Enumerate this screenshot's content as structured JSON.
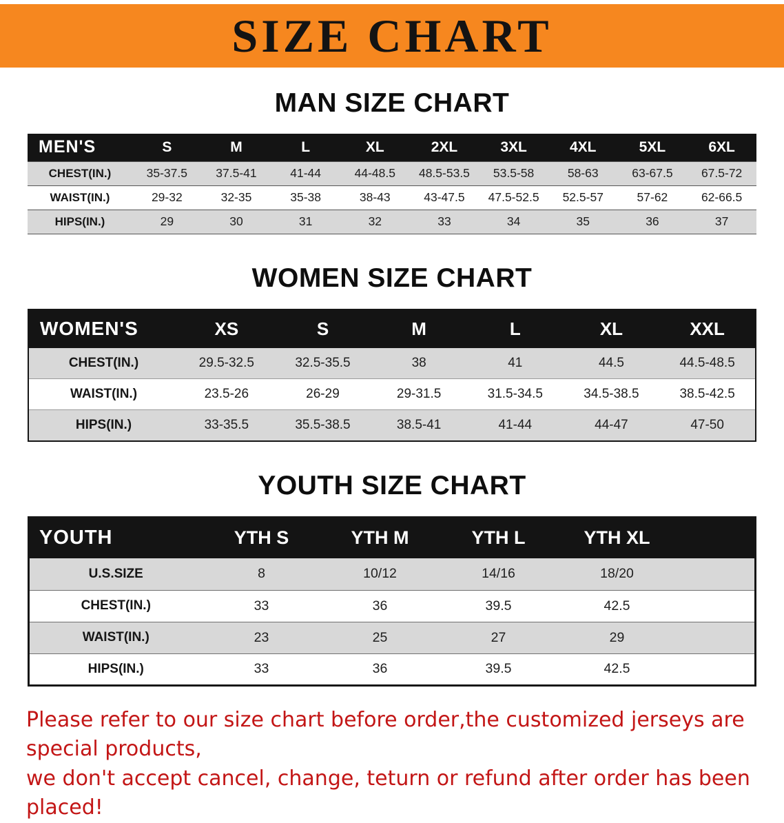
{
  "banner": {
    "title": "SIZE CHART",
    "bg_color": "#f6871f",
    "text_color": "#131313"
  },
  "chart_data": [
    {
      "type": "table",
      "title": "MAN SIZE CHART",
      "corner_label": "MEN'S",
      "columns": [
        "S",
        "M",
        "L",
        "XL",
        "2XL",
        "3XL",
        "4XL",
        "5XL",
        "6XL"
      ],
      "rows": [
        {
          "label": "CHEST(IN.)",
          "values": [
            "35-37.5",
            "37.5-41",
            "41-44",
            "44-48.5",
            "48.5-53.5",
            "53.5-58",
            "58-63",
            "63-67.5",
            "67.5-72"
          ]
        },
        {
          "label": "WAIST(IN.)",
          "values": [
            "29-32",
            "32-35",
            "35-38",
            "38-43",
            "43-47.5",
            "47.5-52.5",
            "52.5-57",
            "57-62",
            "62-66.5"
          ]
        },
        {
          "label": "HIPS(IN.)",
          "values": [
            "29",
            "30",
            "31",
            "32",
            "33",
            "34",
            "35",
            "36",
            "37"
          ]
        }
      ]
    },
    {
      "type": "table",
      "title": "WOMEN SIZE CHART",
      "corner_label": "WOMEN'S",
      "columns": [
        "XS",
        "S",
        "M",
        "L",
        "XL",
        "XXL"
      ],
      "rows": [
        {
          "label": "CHEST(IN.)",
          "values": [
            "29.5-32.5",
            "32.5-35.5",
            "38",
            "41",
            "44.5",
            "44.5-48.5"
          ]
        },
        {
          "label": "WAIST(IN.)",
          "values": [
            "23.5-26",
            "26-29",
            "29-31.5",
            "31.5-34.5",
            "34.5-38.5",
            "38.5-42.5"
          ]
        },
        {
          "label": "HIPS(IN.)",
          "values": [
            "33-35.5",
            "35.5-38.5",
            "38.5-41",
            "41-44",
            "44-47",
            "47-50"
          ]
        }
      ]
    },
    {
      "type": "table",
      "title": "YOUTH SIZE CHART",
      "corner_label": "YOUTH",
      "columns": [
        "YTH S",
        "YTH M",
        "YTH L",
        "YTH XL"
      ],
      "rows": [
        {
          "label": "U.S.SIZE",
          "values": [
            "8",
            "10/12",
            "14/16",
            "18/20"
          ]
        },
        {
          "label": "CHEST(IN.)",
          "values": [
            "33",
            "36",
            "39.5",
            "42.5"
          ]
        },
        {
          "label": "WAIST(IN.)",
          "values": [
            "23",
            "25",
            "27",
            "29"
          ]
        },
        {
          "label": "HIPS(IN.)",
          "values": [
            "33",
            "36",
            "39.5",
            "42.5"
          ]
        }
      ]
    }
  ],
  "footer": {
    "line1": "Please refer to our size chart before order,the customized jerseys are special products,",
    "line2": "we don't accept cancel, change, teturn or refund after order has been placed!",
    "text_color": "#c31616"
  }
}
